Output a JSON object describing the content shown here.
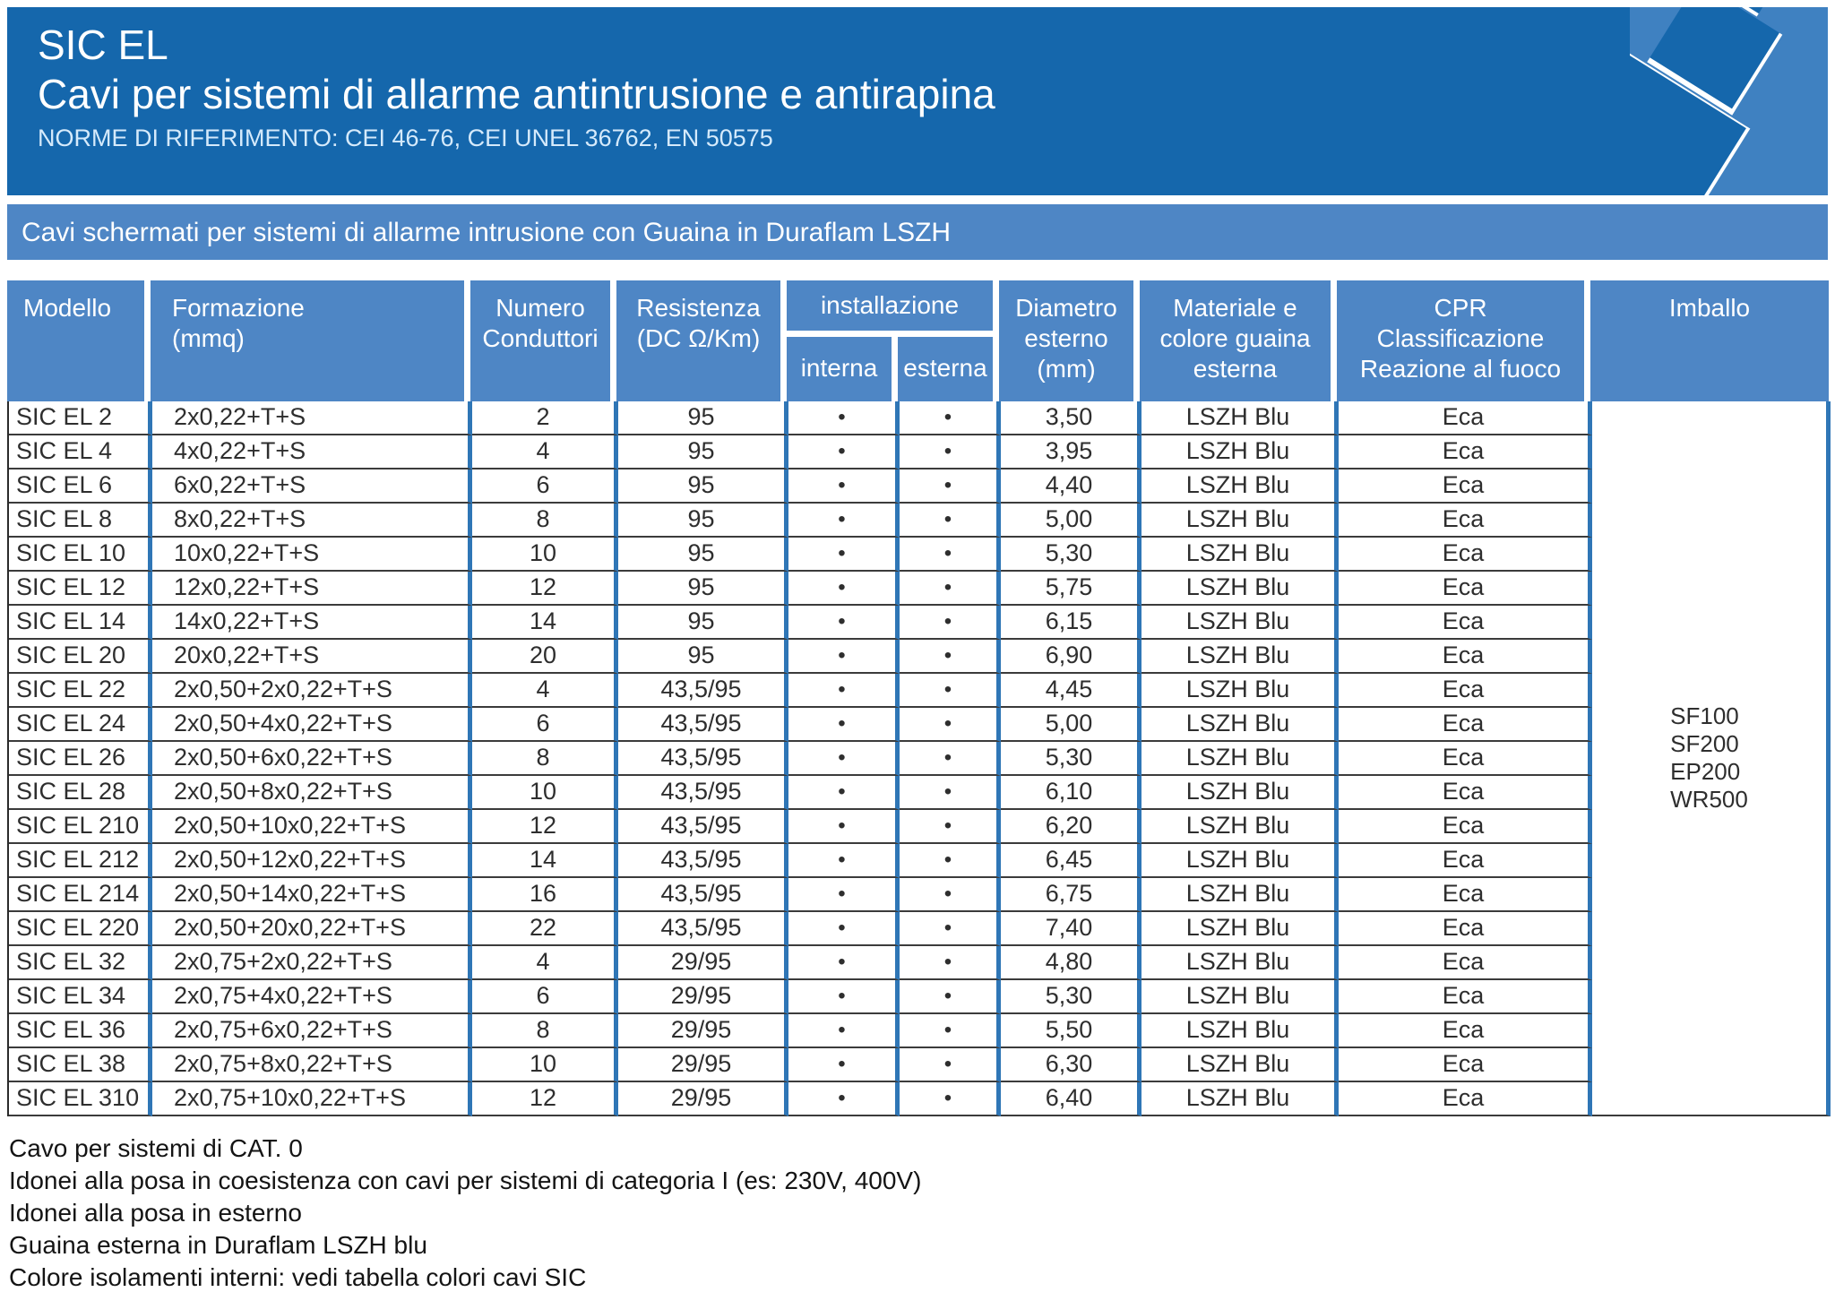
{
  "banner": {
    "title_line1": "SIC EL",
    "title_line2": "Cavi per sistemi di allarme antintrusione e antirapina",
    "title_line3": "NORME DI RIFERIMENTO: CEI 46-76, CEI UNEL 36762, EN 50575"
  },
  "section_bar": "Cavi schermati per sistemi di allarme intrusione con Guaina in Duraflam LSZH",
  "colors": {
    "banner_blue": "#1567ac",
    "header_blue": "#4e86c5",
    "table_border_blue": "#2f76b6",
    "art_light_blue": "#3f81c1"
  },
  "table": {
    "headers": {
      "modello": "Modello",
      "formazione": "Formazione\n(mmq)",
      "numero": "Numero\nConduttori",
      "resistenza": "Resistenza\n(DC Ω/Km)",
      "installazione": "installazione",
      "interna": "interna",
      "esterna": "esterna",
      "diametro": "Diametro\nesterno\n(mm)",
      "materiale": "Materiale e\ncolore guaina\nesterna",
      "cpr": "CPR\nClassificazione\nReazione al fuoco",
      "imballo": "Imballo"
    },
    "rows": [
      [
        "SIC EL 2",
        "2x0,22+T+S",
        "2",
        "95",
        "•",
        "•",
        "3,50",
        "LSZH Blu",
        "Eca"
      ],
      [
        "SIC EL 4",
        "4x0,22+T+S",
        "4",
        "95",
        "•",
        "•",
        "3,95",
        "LSZH Blu",
        "Eca"
      ],
      [
        "SIC EL 6",
        "6x0,22+T+S",
        "6",
        "95",
        "•",
        "•",
        "4,40",
        "LSZH Blu",
        "Eca"
      ],
      [
        "SIC EL 8",
        "8x0,22+T+S",
        "8",
        "95",
        "•",
        "•",
        "5,00",
        "LSZH Blu",
        "Eca"
      ],
      [
        "SIC EL 10",
        "10x0,22+T+S",
        "10",
        "95",
        "•",
        "•",
        "5,30",
        "LSZH Blu",
        "Eca"
      ],
      [
        "SIC EL 12",
        "12x0,22+T+S",
        "12",
        "95",
        "•",
        "•",
        "5,75",
        "LSZH Blu",
        "Eca"
      ],
      [
        "SIC EL 14",
        "14x0,22+T+S",
        "14",
        "95",
        "•",
        "•",
        "6,15",
        "LSZH Blu",
        "Eca"
      ],
      [
        "SIC EL 20",
        "20x0,22+T+S",
        "20",
        "95",
        "•",
        "•",
        "6,90",
        "LSZH Blu",
        "Eca"
      ],
      [
        "SIC EL 22",
        "2x0,50+2x0,22+T+S",
        "4",
        "43,5/95",
        "•",
        "•",
        "4,45",
        "LSZH Blu",
        "Eca"
      ],
      [
        "SIC EL 24",
        "2x0,50+4x0,22+T+S",
        "6",
        "43,5/95",
        "•",
        "•",
        "5,00",
        "LSZH Blu",
        "Eca"
      ],
      [
        "SIC EL 26",
        "2x0,50+6x0,22+T+S",
        "8",
        "43,5/95",
        "•",
        "•",
        "5,30",
        "LSZH Blu",
        "Eca"
      ],
      [
        "SIC EL 28",
        "2x0,50+8x0,22+T+S",
        "10",
        "43,5/95",
        "•",
        "•",
        "6,10",
        "LSZH Blu",
        "Eca"
      ],
      [
        "SIC EL 210",
        "2x0,50+10x0,22+T+S",
        "12",
        "43,5/95",
        "•",
        "•",
        "6,20",
        "LSZH Blu",
        "Eca"
      ],
      [
        "SIC EL 212",
        "2x0,50+12x0,22+T+S",
        "14",
        "43,5/95",
        "•",
        "•",
        "6,45",
        "LSZH Blu",
        "Eca"
      ],
      [
        "SIC EL 214",
        "2x0,50+14x0,22+T+S",
        "16",
        "43,5/95",
        "•",
        "•",
        "6,75",
        "LSZH Blu",
        "Eca"
      ],
      [
        "SIC EL 220",
        "2x0,50+20x0,22+T+S",
        "22",
        "43,5/95",
        "•",
        "•",
        "7,40",
        "LSZH Blu",
        "Eca"
      ],
      [
        "SIC EL 32",
        "2x0,75+2x0,22+T+S",
        "4",
        "29/95",
        "•",
        "•",
        "4,80",
        "LSZH Blu",
        "Eca"
      ],
      [
        "SIC EL 34",
        "2x0,75+4x0,22+T+S",
        "6",
        "29/95",
        "•",
        "•",
        "5,30",
        "LSZH Blu",
        "Eca"
      ],
      [
        "SIC EL 36",
        "2x0,75+6x0,22+T+S",
        "8",
        "29/95",
        "•",
        "•",
        "5,50",
        "LSZH Blu",
        "Eca"
      ],
      [
        "SIC EL 38",
        "2x0,75+8x0,22+T+S",
        "10",
        "29/95",
        "•",
        "•",
        "6,30",
        "LSZH Blu",
        "Eca"
      ],
      [
        "SIC EL 310",
        "2x0,75+10x0,22+T+S",
        "12",
        "29/95",
        "•",
        "•",
        "6,40",
        "LSZH Blu",
        "Eca"
      ]
    ],
    "imballo": [
      "SF100",
      "SF200",
      "EP200",
      "WR500"
    ]
  },
  "notes": [
    "Cavo per sistemi di CAT. 0",
    "Idonei alla posa in coesistenza con cavi per sistemi di categoria I (es: 230V, 400V)",
    "Idonei alla posa in esterno",
    "Guaina esterna in Duraflam LSZH blu",
    "Colore isolamenti interni: vedi tabella colori cavi SIC"
  ]
}
